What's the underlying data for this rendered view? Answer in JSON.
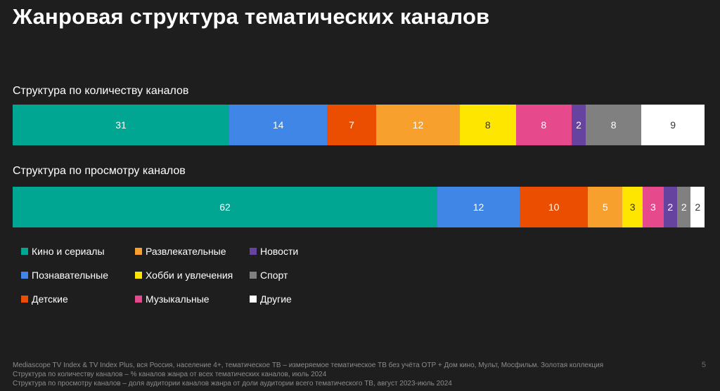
{
  "title": "Жанровая структура тематических каналов",
  "sections": {
    "count_label": "Структура по количеству каналов",
    "views_label": "Структура по просмотру каналов"
  },
  "chart_data": {
    "type": "bar",
    "orientation": "horizontal",
    "stacked": true,
    "percent": true,
    "categories": [
      "Структура по количеству каналов",
      "Структура по просмотру каналов"
    ],
    "series": [
      {
        "name": "Кино и сериалы",
        "color": "#00a692",
        "values": [
          31,
          62
        ]
      },
      {
        "name": "Познавательные",
        "color": "#3f86e6",
        "values": [
          14,
          12
        ]
      },
      {
        "name": "Детские",
        "color": "#eb4e00",
        "values": [
          7,
          10
        ]
      },
      {
        "name": "Развлекательные",
        "color": "#f7a02d",
        "values": [
          12,
          5
        ]
      },
      {
        "name": "Хобби и увлечения",
        "color": "#ffe600",
        "values": [
          8,
          3
        ]
      },
      {
        "name": "Музыкальные",
        "color": "#e64a8c",
        "values": [
          8,
          3
        ]
      },
      {
        "name": "Новости",
        "color": "#6743a0",
        "values": [
          2,
          2
        ]
      },
      {
        "name": "Спорт",
        "color": "#808080",
        "values": [
          8,
          2
        ]
      },
      {
        "name": "Другие",
        "color": "#ffffff",
        "values": [
          9,
          2
        ]
      }
    ],
    "legend_position": "bottom-left",
    "grid": false
  },
  "footnote": {
    "line1": "Mediascope TV Index & TV Index Plus, вся Россия, население 4+, тематическое ТВ – измеряемое тематическое ТВ без учёта ОТР + Дом кино, Мульт, Мосфильм. Золотая коллекция",
    "line2": "Структура по количеству каналов – % каналов жанра от всех тематических каналов, июль 2024",
    "line3": "Структура по просмотру каналов – доля аудитории каналов жанра от доли аудитории всего тематического ТВ, август 2023-июль 2024"
  },
  "page_number": "5"
}
